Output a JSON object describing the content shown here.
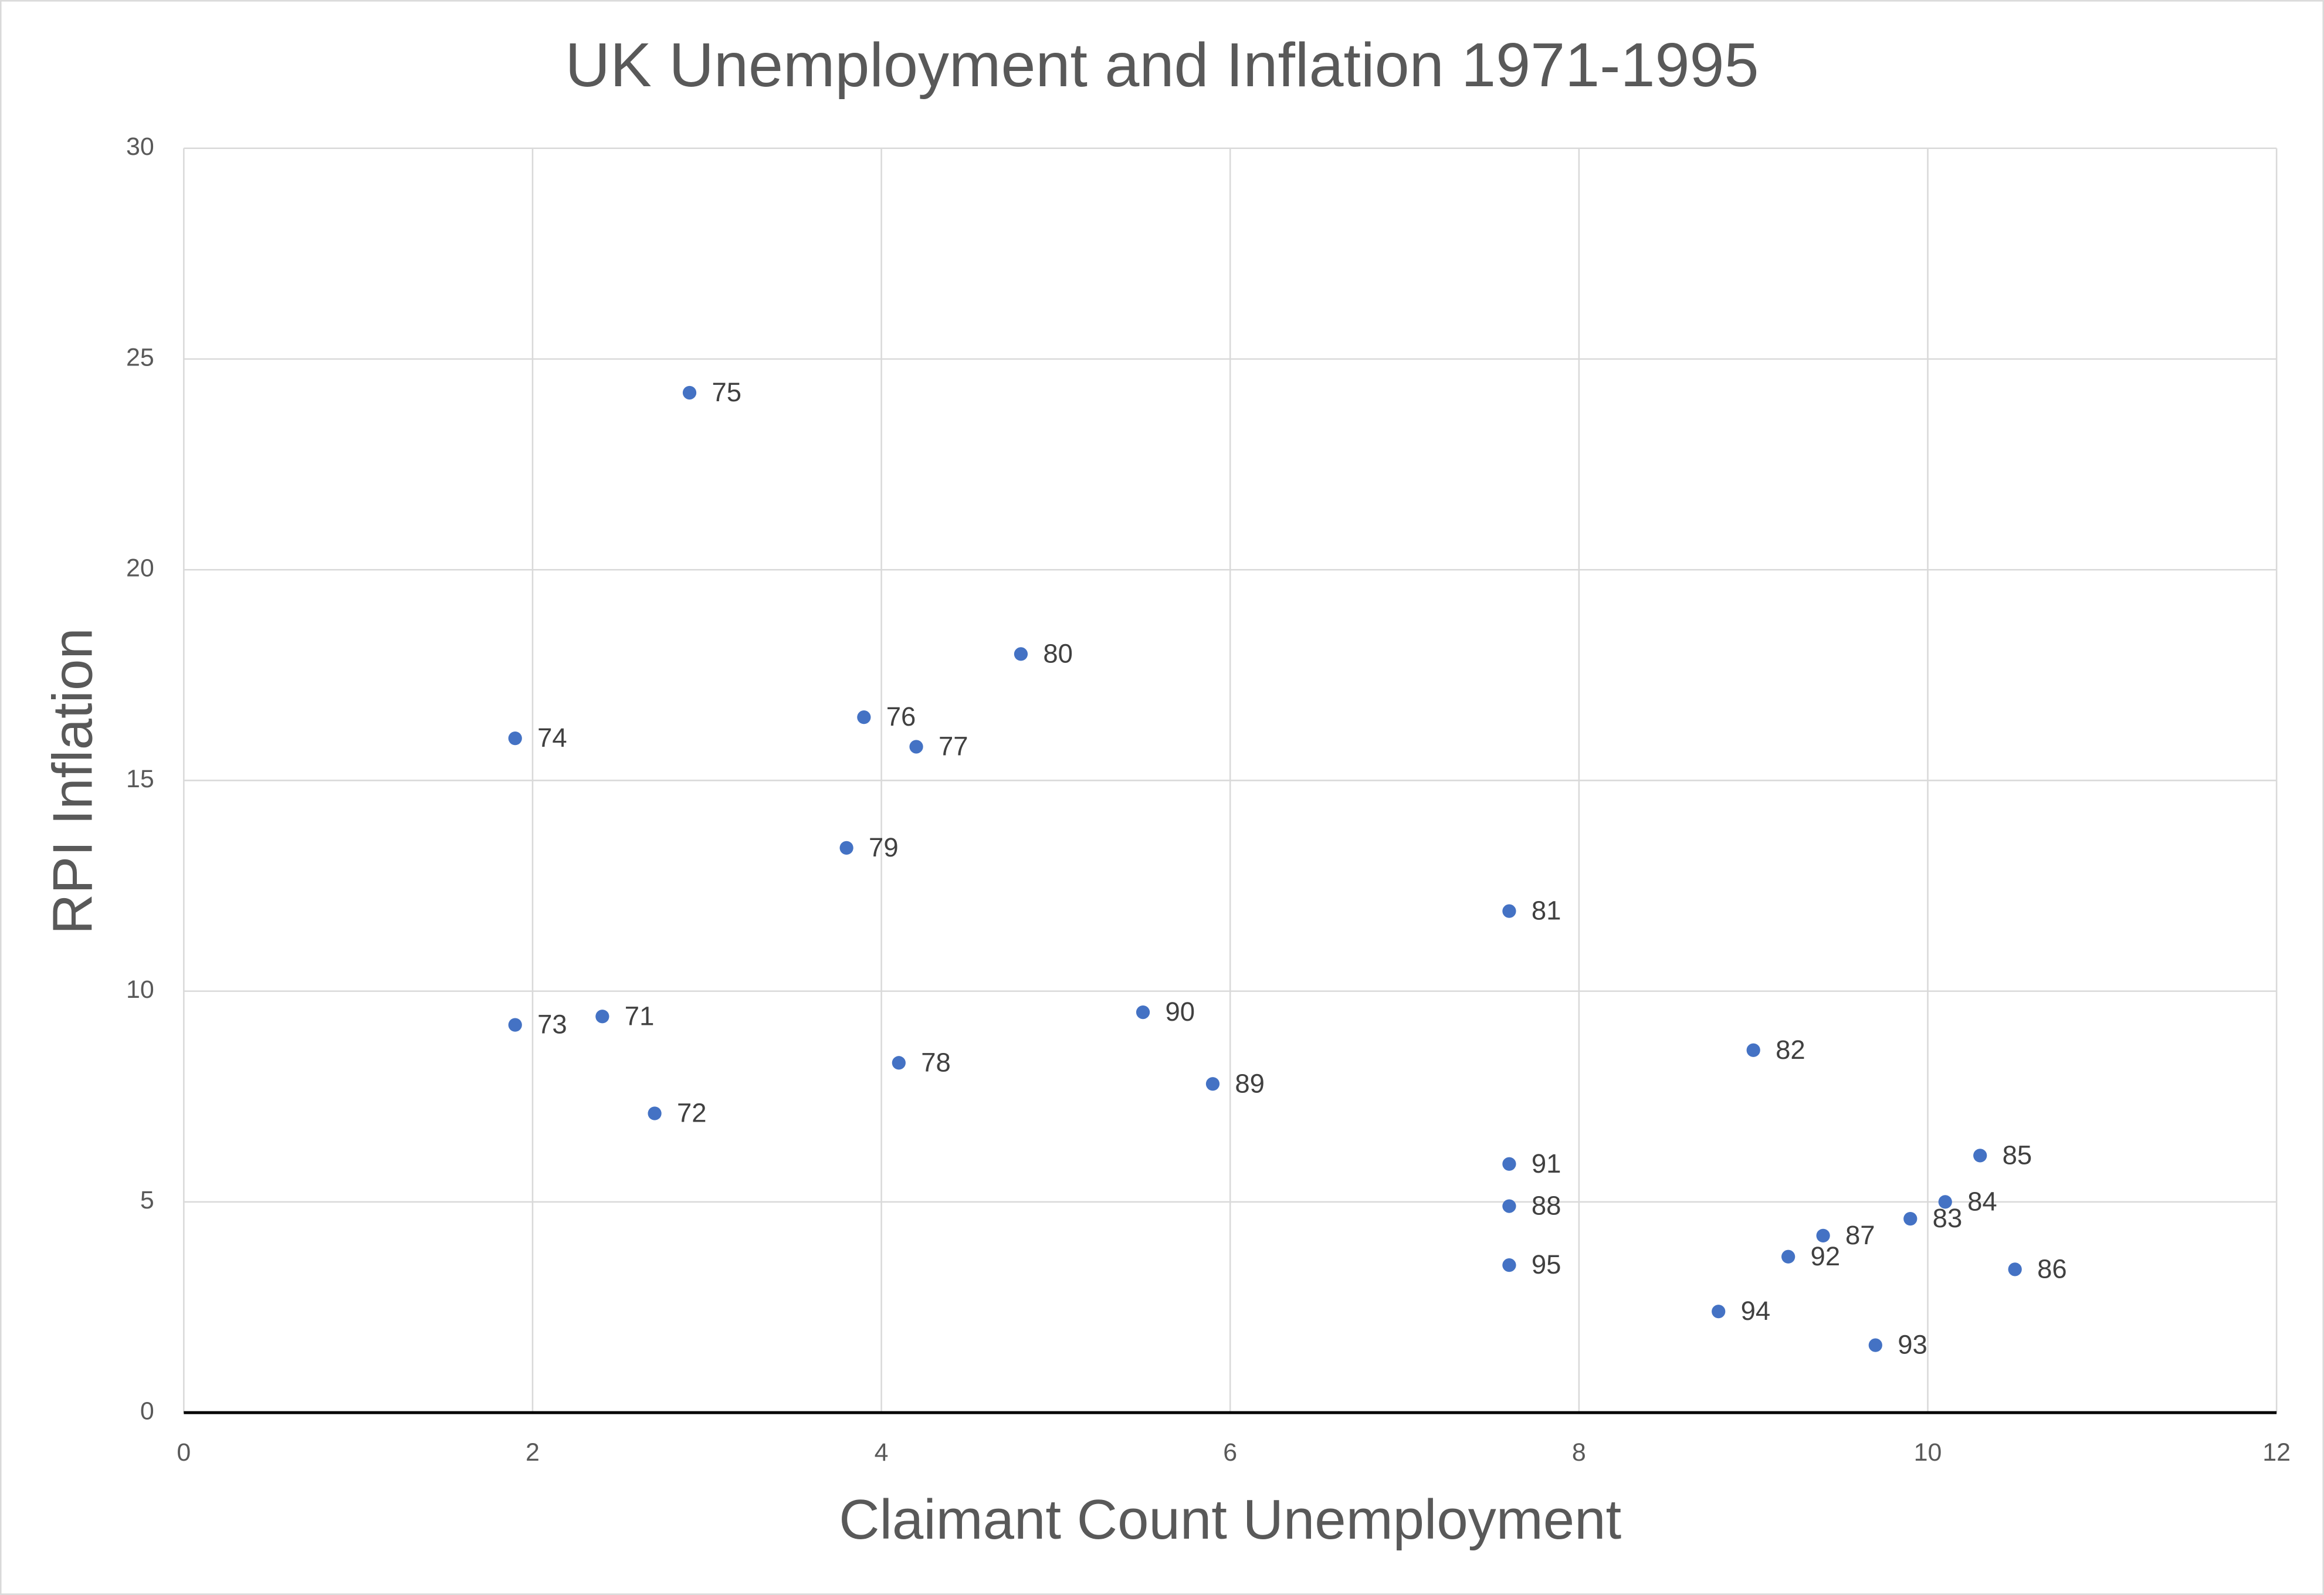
{
  "chart_data": {
    "type": "scatter",
    "title": "UK Unemployment and Inflation 1971-1995",
    "x_label": "Claimant Count Unemployment",
    "y_label": "RPI Inflation",
    "color": "#4472c4",
    "grid": true,
    "xlim": [
      0,
      12
    ],
    "xticks": [
      0,
      2,
      4,
      6,
      8,
      10,
      12
    ],
    "ylim": [
      0,
      30
    ],
    "yticks": [
      0,
      5,
      10,
      15,
      20,
      25,
      30
    ],
    "x": [
      2.4,
      2.7,
      1.9,
      1.9,
      2.9,
      3.9,
      4.2,
      4.1,
      3.8,
      4.8,
      7.6,
      9.0,
      9.9,
      10.1,
      10.3,
      10.5,
      9.4,
      7.6,
      5.9,
      5.5,
      7.6,
      9.2,
      9.7,
      8.8,
      7.6
    ],
    "values": [
      9.4,
      7.1,
      9.2,
      16.0,
      24.2,
      16.5,
      15.8,
      8.3,
      13.4,
      18.0,
      11.9,
      8.6,
      4.6,
      5.0,
      6.1,
      3.4,
      4.2,
      4.9,
      7.8,
      9.5,
      5.9,
      3.7,
      1.6,
      2.4,
      3.5
    ],
    "point_labels": [
      "71",
      "72",
      "73",
      "74",
      "75",
      "76",
      "77",
      "78",
      "79",
      "80",
      "81",
      "82",
      "83",
      "84",
      "85",
      "86",
      "87",
      "88",
      "89",
      "90",
      "91",
      "92",
      "93",
      "94",
      "95"
    ]
  }
}
